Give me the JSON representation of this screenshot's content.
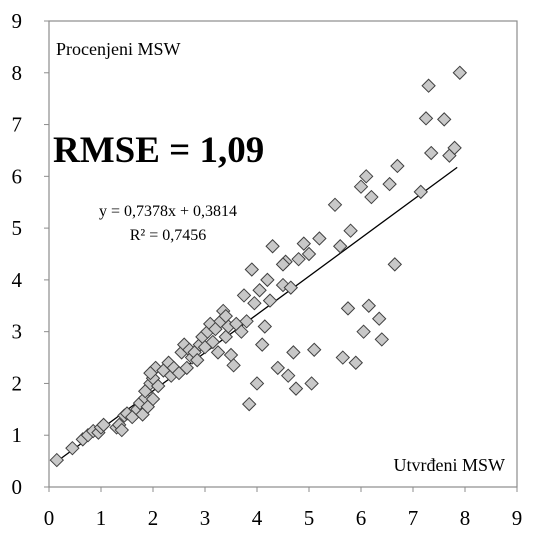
{
  "chart_data": {
    "type": "scatter",
    "title": "",
    "xlabel": "Utvrđeni MSW",
    "ylabel": "Procenjeni MSW",
    "xlim": [
      0,
      9
    ],
    "ylim": [
      0,
      9
    ],
    "x_ticks": [
      "0",
      "1",
      "2",
      "3",
      "4",
      "5",
      "6",
      "7",
      "8",
      "9"
    ],
    "y_ticks": [
      "0",
      "1",
      "2",
      "3",
      "4",
      "5",
      "6",
      "7",
      "8",
      "9"
    ],
    "grid": false,
    "legend": "none",
    "marker": "diamond",
    "marker_fill": "#c8c8c8",
    "marker_stroke": "#404040",
    "annotations": {
      "rmse": "RMSE = 1,09",
      "equation": "y = 0,7378x + 0,3814",
      "r2": "R² = 0,7456"
    },
    "trendline": {
      "slope": 0.7378,
      "intercept": 0.3814,
      "x_range": [
        0.15,
        7.85
      ]
    },
    "series": [
      {
        "points": [
          [
            0.15,
            0.52
          ],
          [
            0.45,
            0.75
          ],
          [
            0.65,
            0.92
          ],
          [
            0.75,
            1.0
          ],
          [
            0.85,
            1.08
          ],
          [
            0.95,
            1.05
          ],
          [
            1.0,
            1.15
          ],
          [
            1.05,
            1.2
          ],
          [
            1.3,
            1.15
          ],
          [
            1.35,
            1.2
          ],
          [
            1.4,
            1.1
          ],
          [
            1.45,
            1.38
          ],
          [
            1.5,
            1.42
          ],
          [
            1.6,
            1.35
          ],
          [
            1.7,
            1.5
          ],
          [
            1.75,
            1.62
          ],
          [
            1.8,
            1.4
          ],
          [
            1.85,
            1.72
          ],
          [
            1.9,
            1.55
          ],
          [
            1.85,
            1.85
          ],
          [
            1.95,
            2.0
          ],
          [
            2.0,
            2.1
          ],
          [
            2.0,
            1.7
          ],
          [
            2.05,
            2.3
          ],
          [
            1.95,
            2.2
          ],
          [
            2.1,
            1.95
          ],
          [
            2.2,
            2.25
          ],
          [
            2.3,
            2.4
          ],
          [
            2.35,
            2.15
          ],
          [
            2.4,
            2.3
          ],
          [
            2.5,
            2.2
          ],
          [
            2.55,
            2.6
          ],
          [
            2.6,
            2.75
          ],
          [
            2.65,
            2.3
          ],
          [
            2.7,
            2.65
          ],
          [
            2.75,
            2.5
          ],
          [
            2.8,
            2.6
          ],
          [
            2.9,
            2.75
          ],
          [
            2.95,
            2.9
          ],
          [
            3.0,
            2.7
          ],
          [
            3.05,
            3.0
          ],
          [
            3.1,
            3.15
          ],
          [
            3.15,
            2.8
          ],
          [
            3.2,
            3.05
          ],
          [
            3.25,
            2.6
          ],
          [
            3.3,
            3.2
          ],
          [
            3.35,
            3.4
          ],
          [
            3.4,
            2.9
          ],
          [
            3.45,
            3.1
          ],
          [
            3.5,
            2.55
          ],
          [
            3.55,
            2.35
          ],
          [
            3.6,
            3.15
          ],
          [
            3.7,
            3.0
          ],
          [
            3.75,
            3.7
          ],
          [
            3.8,
            3.2
          ],
          [
            3.85,
            1.6
          ],
          [
            3.9,
            4.2
          ],
          [
            3.95,
            3.55
          ],
          [
            4.0,
            2.0
          ],
          [
            4.05,
            3.8
          ],
          [
            4.1,
            2.75
          ],
          [
            4.15,
            3.1
          ],
          [
            4.2,
            4.0
          ],
          [
            4.25,
            3.6
          ],
          [
            4.3,
            4.65
          ],
          [
            4.4,
            2.3
          ],
          [
            4.5,
            3.9
          ],
          [
            4.55,
            4.35
          ],
          [
            4.6,
            2.15
          ],
          [
            4.65,
            3.85
          ],
          [
            4.7,
            2.6
          ],
          [
            4.75,
            1.9
          ],
          [
            4.8,
            4.4
          ],
          [
            4.9,
            4.7
          ],
          [
            5.0,
            4.5
          ],
          [
            5.05,
            2.0
          ],
          [
            5.1,
            2.65
          ],
          [
            5.2,
            4.8
          ],
          [
            5.5,
            5.45
          ],
          [
            5.6,
            4.65
          ],
          [
            5.65,
            2.5
          ],
          [
            5.75,
            3.45
          ],
          [
            5.8,
            4.95
          ],
          [
            5.9,
            2.4
          ],
          [
            6.0,
            5.8
          ],
          [
            6.05,
            3.0
          ],
          [
            6.1,
            6.0
          ],
          [
            6.15,
            3.5
          ],
          [
            6.2,
            5.6
          ],
          [
            6.35,
            3.25
          ],
          [
            6.4,
            2.85
          ],
          [
            6.55,
            5.85
          ],
          [
            6.65,
            4.3
          ],
          [
            6.7,
            6.2
          ],
          [
            7.15,
            5.7
          ],
          [
            7.25,
            7.12
          ],
          [
            7.3,
            7.75
          ],
          [
            7.35,
            6.45
          ],
          [
            7.6,
            7.1
          ],
          [
            7.7,
            6.4
          ],
          [
            7.8,
            6.55
          ],
          [
            7.9,
            8.0
          ],
          [
            3.4,
            3.3
          ],
          [
            2.85,
            2.45
          ],
          [
            4.5,
            4.3
          ]
        ]
      }
    ]
  }
}
